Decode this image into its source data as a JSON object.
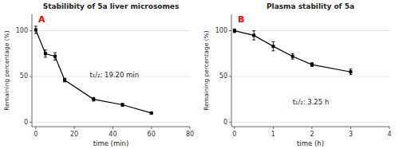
{
  "chart_data": [
    {
      "type": "line",
      "title": "Stabilibity of 5a liver microsomes",
      "xlabel": "time (min)",
      "ylabel": "Remaining percentage (%)",
      "xlim": [
        -2,
        80
      ],
      "ylim": [
        -5,
        118
      ],
      "xticks": [
        0,
        20,
        40,
        60,
        80
      ],
      "yticks": [
        0,
        50,
        100
      ],
      "x": [
        0,
        5,
        10,
        15,
        30,
        45,
        60
      ],
      "series": [
        {
          "color": "black",
          "marker": "square",
          "line_style": "solid",
          "values": [
            101,
            75,
            72,
            46,
            25,
            19,
            10
          ],
          "errors": [
            4,
            4,
            4,
            2,
            2,
            1.5,
            1
          ]
        }
      ],
      "annotations": [
        {
          "text": "A",
          "color": "red"
        },
        {
          "text": "t₁/₂: 19.20 min",
          "x": 28,
          "y": 52
        }
      ]
    },
    {
      "type": "line",
      "title": "Plasma stability of 5a",
      "xlabel": "time (h)",
      "ylabel": "Remaining percentage (%)",
      "xlim": [
        -0.08,
        4
      ],
      "ylim": [
        -5,
        118
      ],
      "xticks": [
        0,
        1,
        2,
        3,
        4
      ],
      "yticks": [
        0,
        50,
        100
      ],
      "x": [
        0,
        0.5,
        1.0,
        1.5,
        2.0,
        3.0
      ],
      "series": [
        {
          "color": "black",
          "marker": "square",
          "line_style": "solid",
          "values": [
            100,
            95,
            83,
            72,
            63,
            55
          ],
          "errors": [
            2,
            5,
            5,
            3,
            2,
            3
          ]
        }
      ],
      "annotations": [
        {
          "text": "B",
          "color": "red"
        },
        {
          "text": "t₁/₂: 3.25 h",
          "x": 1.5,
          "y": 22
        }
      ]
    }
  ]
}
